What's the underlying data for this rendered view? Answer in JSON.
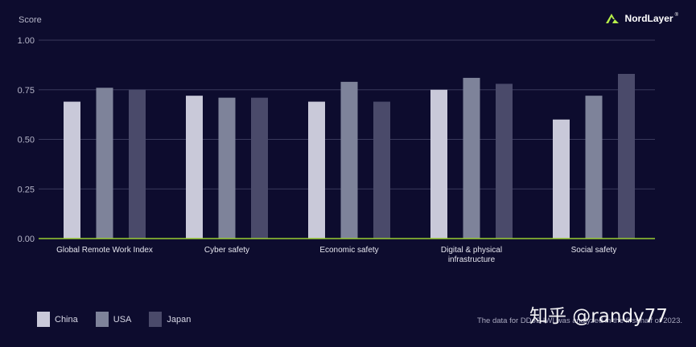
{
  "brand": {
    "name": "NordLayer"
  },
  "footnote": "The data for DDoS IWI was analyzed in the first half of 2023.",
  "watermark": "知乎 @randy77",
  "colors": {
    "background": "#0d0c2e",
    "baseline": "#9acd32",
    "grid": "#3a3a5c",
    "text": "#e6e6ef",
    "brand_icon": "#b7f04a"
  },
  "chart_data": {
    "type": "bar",
    "ylabel": "Score",
    "xlabel": "",
    "ylim": [
      0,
      1
    ],
    "yticks": [
      "0.00",
      "0.25",
      "0.50",
      "0.75",
      "1.00"
    ],
    "grid": true,
    "legend_position": "bottom-left",
    "categories": [
      [
        "Global Remote Work Index"
      ],
      [
        "Cyber safety"
      ],
      [
        "Economic safety"
      ],
      [
        "Digital & physical",
        "infrastructure"
      ],
      [
        "Social safety"
      ]
    ],
    "series": [
      {
        "name": "China",
        "color": "#c9c9d9",
        "values": [
          0.69,
          0.72,
          0.69,
          0.75,
          0.6
        ]
      },
      {
        "name": "USA",
        "color": "#7e839a",
        "values": [
          0.76,
          0.71,
          0.79,
          0.81,
          0.72
        ]
      },
      {
        "name": "Japan",
        "color": "#4a4a6a",
        "values": [
          0.75,
          0.71,
          0.69,
          0.78,
          0.83
        ]
      }
    ]
  }
}
